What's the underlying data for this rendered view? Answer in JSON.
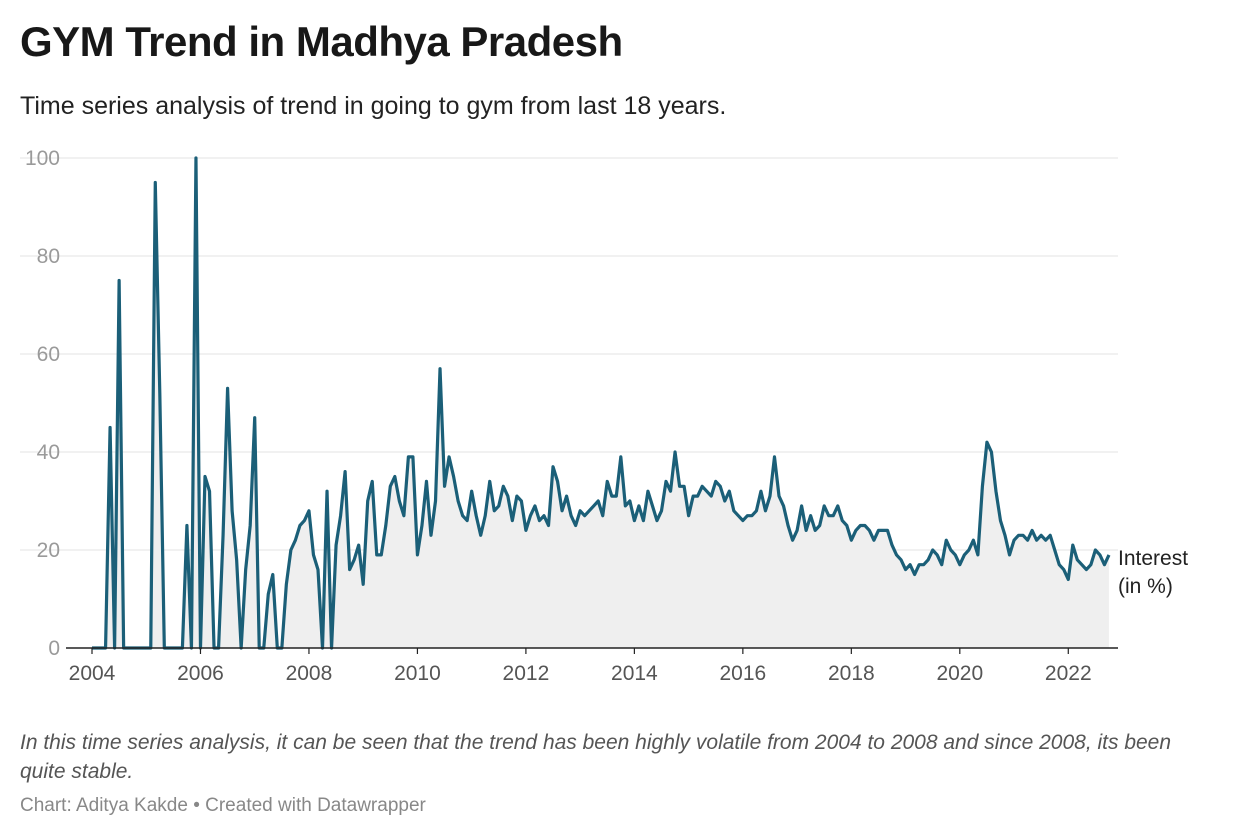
{
  "title": "GYM Trend in Madhya Pradesh",
  "subtitle": "Time series analysis of trend in going to gym from last 18 years.",
  "notes": "In this time series analysis, it can be seen that the trend has been highly volatile from 2004 to 2008 and since 2008, its been quite stable.",
  "source": "Chart: Aditya Kakde • Created with Datawrapper",
  "colors": {
    "line": "#1b5f78",
    "area": "#efefef",
    "grid": "#e3e3e3",
    "axis": "#222222"
  },
  "chart_data": {
    "type": "area",
    "x_start": "2004-01",
    "x_frequency": "monthly",
    "xlim": [
      "2004-01",
      "2022-12"
    ],
    "ylim": [
      0,
      100
    ],
    "y_ticks": [
      0,
      20,
      40,
      60,
      80,
      100
    ],
    "x_ticks": [
      "2004",
      "2006",
      "2008",
      "2010",
      "2012",
      "2014",
      "2016",
      "2018",
      "2020",
      "2022"
    ],
    "grid": true,
    "series": [
      {
        "name": "Interest (in %)",
        "label_lines": [
          "Interest",
          "(in %)"
        ],
        "values": [
          0,
          0,
          0,
          0,
          45,
          0,
          75,
          0,
          0,
          0,
          0,
          0,
          0,
          0,
          95,
          52,
          0,
          0,
          0,
          0,
          0,
          25,
          0,
          100,
          0,
          35,
          32,
          0,
          0,
          23,
          53,
          28,
          18,
          0,
          16,
          25,
          47,
          0,
          0,
          11,
          15,
          0,
          0,
          13,
          20,
          22,
          25,
          26,
          28,
          19,
          16,
          0,
          32,
          0,
          21,
          27,
          36,
          16,
          18,
          21,
          13,
          30,
          34,
          19,
          19,
          25,
          33,
          35,
          30,
          27,
          39,
          39,
          19,
          25,
          34,
          23,
          30,
          57,
          33,
          39,
          35,
          30,
          27,
          26,
          32,
          27,
          23,
          27,
          34,
          28,
          29,
          33,
          31,
          26,
          31,
          30,
          24,
          27,
          29,
          26,
          27,
          25,
          37,
          34,
          28,
          31,
          27,
          25,
          28,
          27,
          28,
          29,
          30,
          27,
          34,
          31,
          31,
          39,
          29,
          30,
          26,
          29,
          26,
          32,
          29,
          26,
          28,
          34,
          32,
          40,
          33,
          33,
          27,
          31,
          31,
          33,
          32,
          31,
          34,
          33,
          30,
          32,
          28,
          27,
          26,
          27,
          27,
          28,
          32,
          28,
          31,
          39,
          31,
          29,
          25,
          22,
          24,
          29,
          24,
          27,
          24,
          25,
          29,
          27,
          27,
          29,
          26,
          25,
          22,
          24,
          25,
          25,
          24,
          22,
          24,
          24,
          24,
          21,
          19,
          18,
          16,
          17,
          15,
          17,
          17,
          18,
          20,
          19,
          17,
          22,
          20,
          19,
          17,
          19,
          20,
          22,
          19,
          33,
          42,
          40,
          32,
          26,
          23,
          19,
          22,
          23,
          23,
          22,
          24,
          22,
          23,
          22,
          23,
          20,
          17,
          16,
          14,
          21,
          18,
          17,
          16,
          17,
          20,
          19,
          17,
          19
        ]
      }
    ]
  }
}
